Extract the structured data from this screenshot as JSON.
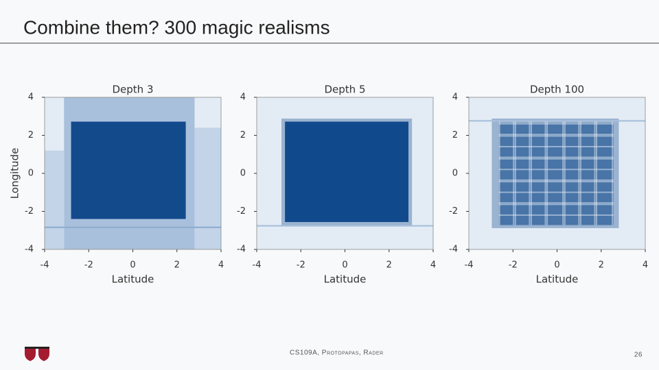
{
  "title": "Combine them? 300 magic realisms",
  "footer": "CS109A, Protopapas, Rader",
  "page_number": "26",
  "chart_data": [
    {
      "type": "heatmap",
      "title": "Depth 3",
      "xlabel": "Latitude",
      "ylabel": "Longitude",
      "xlim": [
        -4,
        4
      ],
      "ylim": [
        -4,
        4
      ],
      "xticks": [
        -4,
        -2,
        0,
        2,
        4
      ],
      "yticks": [
        -4,
        -2,
        0,
        2,
        4
      ],
      "color": "#124a8c"
    },
    {
      "type": "heatmap",
      "title": "Depth 5",
      "xlabel": "Latitude",
      "xlim": [
        -4,
        4
      ],
      "ylim": [
        -4,
        4
      ],
      "xticks": [
        -4,
        -2,
        0,
        2,
        4
      ],
      "yticks": [
        -4,
        -2,
        0,
        2,
        4
      ],
      "color": "#124a8c"
    },
    {
      "type": "heatmap",
      "title": "Depth 100",
      "xlabel": "Latitude",
      "xlim": [
        -4,
        4
      ],
      "ylim": [
        -4,
        4
      ],
      "xticks": [
        -4,
        -2,
        0,
        2,
        4
      ],
      "yticks": [
        -4,
        -2,
        0,
        2,
        4
      ],
      "color": "#124a8c"
    }
  ]
}
